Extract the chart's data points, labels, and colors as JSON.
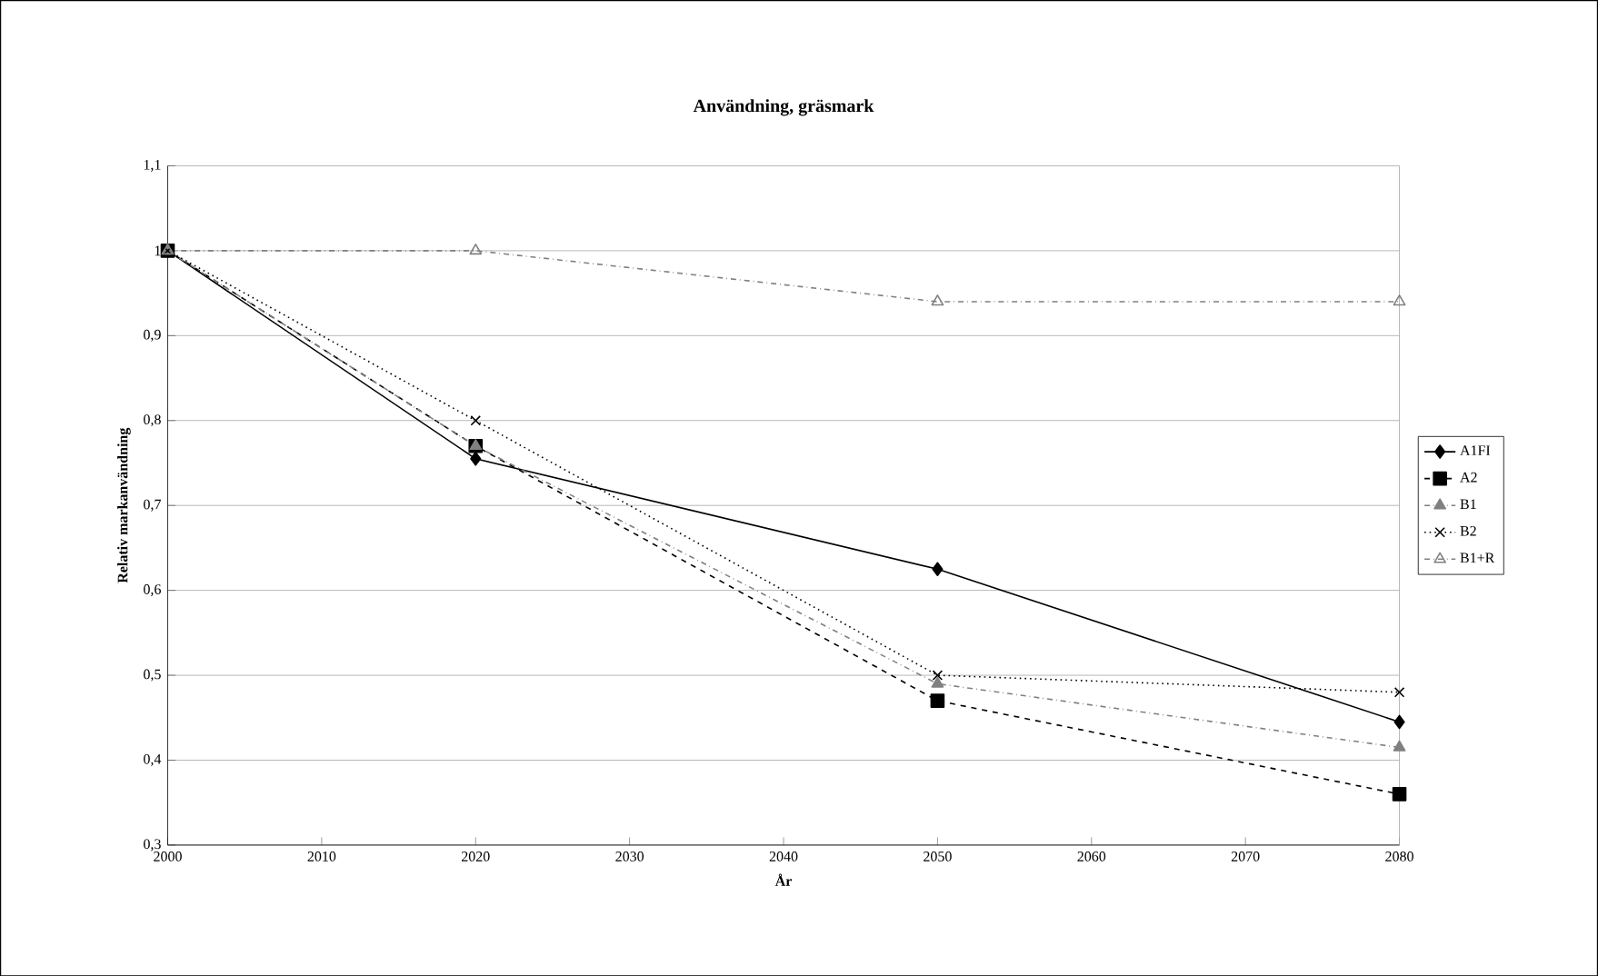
{
  "chart_data": {
    "type": "line",
    "title": "Användning, gräsmark",
    "xlabel": "År",
    "ylabel": "Relativ markanvändning",
    "x": [
      2000,
      2020,
      2050,
      2080
    ],
    "series": [
      {
        "name": "A1FI",
        "color": "#000000",
        "values": [
          1,
          0.755,
          0.625,
          0.445
        ],
        "marker": "diamond",
        "line_style": "solid"
      },
      {
        "name": "A2",
        "color": "#000000",
        "values": [
          1,
          0.77,
          0.47,
          0.36
        ],
        "marker": "square",
        "line_style": "dashed"
      },
      {
        "name": "B1",
        "color": "#808080",
        "values": [
          1,
          0.77,
          0.49,
          0.415
        ],
        "marker": "triangle",
        "line_style": "dashdot"
      },
      {
        "name": "B2",
        "color": "#000000",
        "values": [
          1,
          0.8,
          0.5,
          0.48
        ],
        "marker": "cross",
        "line_style": "dotted"
      },
      {
        "name": "B1+R",
        "color": "#808080",
        "values": [
          1,
          1,
          0.94,
          0.94
        ],
        "marker": "triangle-open",
        "line_style": "dashdot"
      }
    ],
    "xlim": [
      2000,
      2080
    ],
    "xticks": [
      2000,
      2010,
      2020,
      2030,
      2040,
      2050,
      2060,
      2070,
      2080
    ],
    "ylim": [
      0.3,
      1.1
    ],
    "yticks": [
      {
        "value": 0.3,
        "label": "0,3"
      },
      {
        "value": 0.4,
        "label": "0,4"
      },
      {
        "value": 0.5,
        "label": "0,5"
      },
      {
        "value": 0.6,
        "label": "0,6"
      },
      {
        "value": 0.7,
        "label": "0,7"
      },
      {
        "value": 0.8,
        "label": "0,8"
      },
      {
        "value": 0.9,
        "label": "0,9"
      },
      1,
      {
        "value": 1.1,
        "label": "1,1"
      }
    ],
    "grid": "y",
    "legend": "right"
  }
}
